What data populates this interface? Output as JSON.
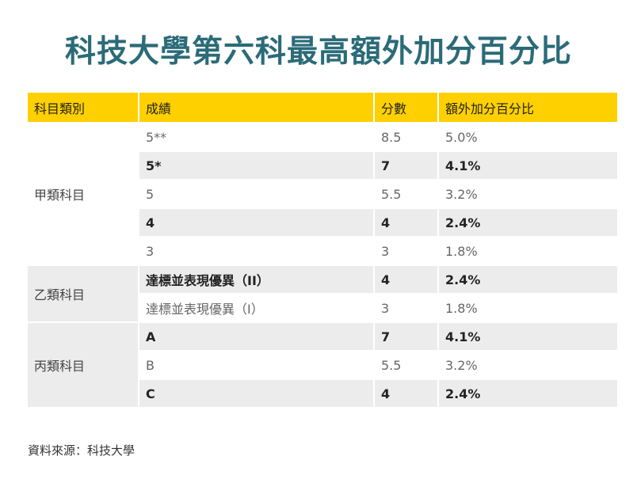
{
  "title": "科技大學第六科最高額外加分百分比",
  "table": {
    "headers": [
      "科目類別",
      "成績",
      "分數",
      "額外加分百分比"
    ],
    "categories": [
      "甲類科目",
      "乙類科目",
      "丙類科目"
    ],
    "rows": [
      {
        "grade": "5**",
        "score": "8.5",
        "percent": "5.0%"
      },
      {
        "grade": "5*",
        "score": "7",
        "percent": "4.1%"
      },
      {
        "grade": "5",
        "score": "5.5",
        "percent": "3.2%"
      },
      {
        "grade": "4",
        "score": "4",
        "percent": "2.4%"
      },
      {
        "grade": "3",
        "score": "3",
        "percent": "1.8%"
      },
      {
        "grade": "達標並表現優異（II）",
        "score": "4",
        "percent": "2.4%"
      },
      {
        "grade": "達標並表現優異（I）",
        "score": "3",
        "percent": "1.8%"
      },
      {
        "grade": "A",
        "score": "7",
        "percent": "4.1%"
      },
      {
        "grade": "B",
        "score": "5.5",
        "percent": "3.2%"
      },
      {
        "grade": "C",
        "score": "4",
        "percent": "2.4%"
      }
    ]
  },
  "source": "資料來源：科技大學",
  "colors": {
    "title": "#2b6b78",
    "header_bg": "#ffd000",
    "stripe": "#ececec"
  }
}
